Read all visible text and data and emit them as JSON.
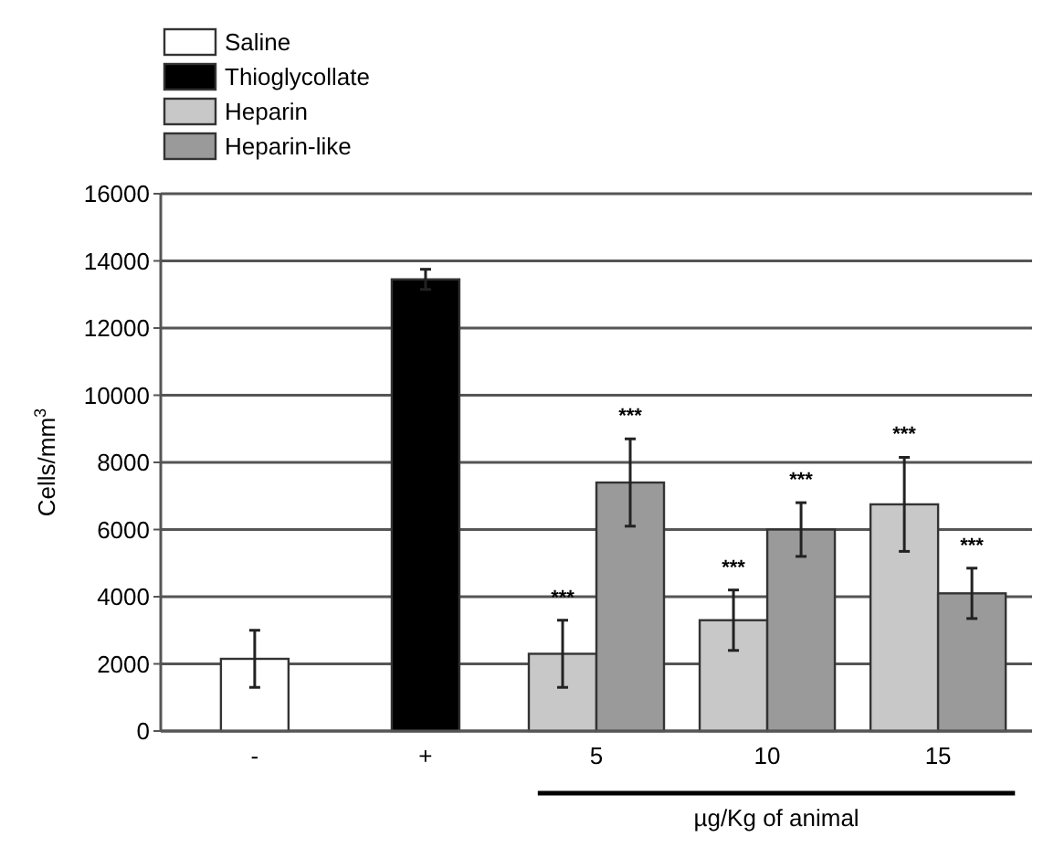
{
  "chart_data": {
    "type": "bar",
    "ylabel": "Cells/mm$^{3}$",
    "xlabel": "µg/Kg of animal",
    "categories": [
      "-",
      "+",
      "5",
      "10",
      "15"
    ],
    "series": [
      {
        "name": "Saline",
        "color": "#ffffff",
        "values": [
          2150,
          null,
          null,
          null,
          null
        ],
        "errors": [
          850,
          null,
          null,
          null,
          null
        ]
      },
      {
        "name": "Thioglycollate",
        "color": "#000000",
        "values": [
          null,
          13450,
          null,
          null,
          null
        ],
        "errors": [
          null,
          300,
          null,
          null,
          null
        ]
      },
      {
        "name": "Heparin",
        "color": "#c8c8c8",
        "values": [
          null,
          null,
          2300,
          3300,
          6750
        ],
        "errors": [
          null,
          null,
          1000,
          900,
          1400
        ]
      },
      {
        "name": "Heparin-like",
        "color": "#9a9a9a",
        "values": [
          null,
          null,
          7400,
          6000,
          4100
        ],
        "errors": [
          null,
          null,
          1300,
          800,
          750
        ]
      }
    ],
    "annotations": [
      "***",
      "***",
      "***",
      "***",
      "***",
      "***"
    ],
    "ylim": [
      0,
      16000
    ],
    "yticks": [
      0,
      2000,
      4000,
      6000,
      8000,
      10000,
      12000,
      14000,
      16000
    ],
    "grid": "y",
    "legend": "top left"
  }
}
